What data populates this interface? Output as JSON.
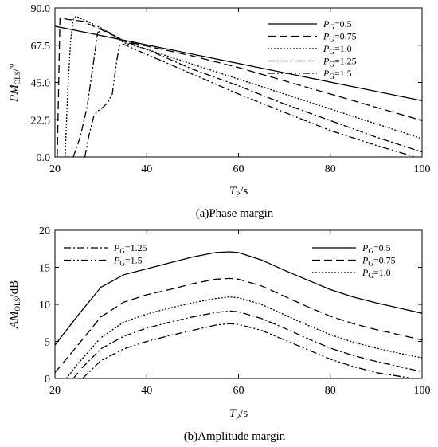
{
  "chart_data": [
    {
      "type": "line",
      "caption": "(a)Phase margin",
      "xlabel": {
        "main": "T",
        "sub": "P",
        "unit": "/s"
      },
      "ylabel": {
        "main": "PM",
        "sub": "OLS",
        "unit": "/°"
      },
      "xlim": [
        20,
        100
      ],
      "ylim": [
        0,
        90
      ],
      "xticks": [
        "20",
        "40",
        "60",
        "80",
        "100"
      ],
      "yticks": [
        "0.0",
        "22.5",
        "45.0",
        "67.5",
        "90.0"
      ],
      "grid": false,
      "legend_position": "top-right",
      "series": [
        {
          "name": "P",
          "name_sub": "G",
          "name_suffix": "=0.5",
          "dash": "",
          "x": [
            20,
            100
          ],
          "y": [
            79,
            34
          ]
        },
        {
          "name": "P",
          "name_sub": "G",
          "name_suffix": "=0.75",
          "dash": "10,5",
          "x": [
            20.5,
            21.1,
            23,
            26,
            30,
            33,
            35,
            40,
            50,
            60,
            70,
            80,
            90,
            100
          ],
          "y": [
            0,
            84,
            83,
            82,
            77,
            73,
            70,
            67,
            61,
            54,
            46,
            38,
            30,
            22
          ]
        },
        {
          "name": "P",
          "name_sub": "G",
          "name_suffix": "=1.0",
          "dash": "2,2",
          "x": [
            22.2,
            22.8,
            23.4,
            24.0,
            24.6,
            27,
            30,
            33,
            35,
            40,
            50,
            60,
            70,
            80,
            90,
            100
          ],
          "y": [
            0,
            40,
            70,
            83,
            85,
            82,
            78,
            73,
            69,
            65,
            56,
            47,
            38,
            29,
            20,
            11
          ]
        },
        {
          "name": "P",
          "name_sub": "G",
          "name_suffix": "=1.25",
          "dash": "9,3,2,3",
          "x": [
            24,
            25.5,
            27,
            28.3,
            29.3,
            30.2,
            32,
            35,
            40,
            50,
            60,
            70,
            80,
            90,
            100
          ],
          "y": [
            0,
            12,
            30,
            55,
            75,
            77,
            75,
            70,
            65,
            53,
            43,
            32,
            22,
            12,
            3
          ]
        },
        {
          "name": "P",
          "name_sub": "G",
          "name_suffix": "=1.5",
          "dash": "9,3,2,3,2,3",
          "x": [
            26.5,
            27.5,
            28.5,
            29.5,
            30.5,
            31.5,
            32.5,
            33.3,
            34,
            35,
            40,
            50,
            60,
            70,
            80,
            90,
            98.5
          ],
          "y": [
            0,
            14,
            25,
            28,
            30,
            33,
            38,
            55,
            67,
            68,
            62,
            50,
            38,
            27,
            16,
            7,
            0
          ]
        }
      ]
    },
    {
      "type": "line",
      "caption": "(b)Amplitude margin",
      "xlabel": {
        "main": "T",
        "sub": "P",
        "unit": "/s"
      },
      "ylabel": {
        "main": "AM",
        "sub": "OLS",
        "unit": "/dB"
      },
      "xlim": [
        20,
        100
      ],
      "ylim": [
        0,
        20
      ],
      "xticks": [
        "20",
        "40",
        "60",
        "80",
        "100"
      ],
      "yticks": [
        "0",
        "5",
        "10",
        "15",
        "20"
      ],
      "grid": false,
      "legend_position": "top-left and top-right",
      "series": [
        {
          "name": "P",
          "name_sub": "G",
          "name_suffix": "=0.5",
          "dash": "",
          "x": [
            20,
            25,
            30,
            35,
            40,
            45,
            50,
            55,
            58,
            60,
            65,
            70,
            75,
            80,
            85,
            90,
            95,
            100
          ],
          "y": [
            4.5,
            8.5,
            12.3,
            14.0,
            14.8,
            15.6,
            16.4,
            17.0,
            17.1,
            17.0,
            16.0,
            14.6,
            13.3,
            12.0,
            11.0,
            10.2,
            9.5,
            8.8
          ]
        },
        {
          "name": "P",
          "name_sub": "G",
          "name_suffix": "=0.75",
          "dash": "10,5",
          "x": [
            20,
            25,
            30,
            35,
            40,
            45,
            50,
            55,
            58,
            60,
            65,
            70,
            75,
            80,
            85,
            90,
            95,
            100
          ],
          "y": [
            0.8,
            4.5,
            8.3,
            10.3,
            11.3,
            12.0,
            12.8,
            13.4,
            13.5,
            13.4,
            12.5,
            11.1,
            9.7,
            8.4,
            7.4,
            6.6,
            5.9,
            5.2
          ]
        },
        {
          "name": "P",
          "name_sub": "G",
          "name_suffix": "=1.0",
          "dash": "2,2",
          "x": [
            22.5,
            25,
            30,
            35,
            40,
            45,
            50,
            55,
            58,
            60,
            65,
            70,
            75,
            80,
            85,
            90,
            95,
            100
          ],
          "y": [
            0,
            2.0,
            5.5,
            7.6,
            8.7,
            9.5,
            10.2,
            10.8,
            11.0,
            10.9,
            10.0,
            8.6,
            7.2,
            5.9,
            4.9,
            4.1,
            3.4,
            2.8
          ]
        },
        {
          "name": "P",
          "name_sub": "G",
          "name_suffix": "=1.25",
          "dash": "9,3,2,3",
          "x": [
            24,
            26,
            30,
            35,
            40,
            45,
            50,
            55,
            58,
            60,
            65,
            70,
            75,
            80,
            85,
            90,
            95,
            100
          ],
          "y": [
            0,
            1.5,
            4.0,
            5.7,
            6.8,
            7.6,
            8.3,
            8.9,
            9.1,
            9.0,
            8.1,
            6.8,
            5.4,
            4.1,
            3.1,
            2.3,
            1.6,
            0.9
          ]
        },
        {
          "name": "P",
          "name_sub": "G",
          "name_suffix": "=1.5",
          "dash": "9,3,2,3,2,3",
          "x": [
            26,
            28,
            30,
            35,
            40,
            45,
            50,
            55,
            58,
            60,
            65,
            70,
            75,
            80,
            85,
            90,
            95,
            98
          ],
          "y": [
            0,
            1.2,
            2.4,
            4.0,
            5.0,
            5.8,
            6.5,
            7.2,
            7.4,
            7.3,
            6.5,
            5.2,
            3.9,
            2.6,
            1.6,
            0.8,
            0.3,
            0
          ]
        }
      ]
    }
  ]
}
